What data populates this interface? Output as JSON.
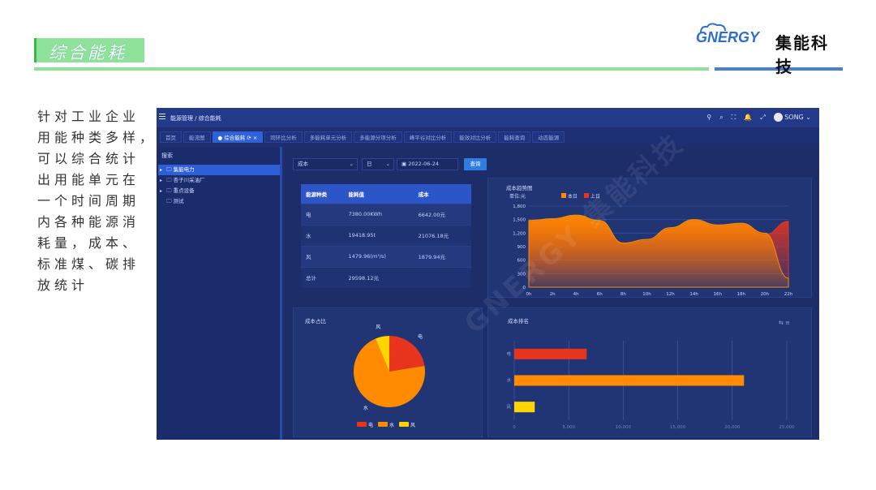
{
  "slide": {
    "title": "综合能耗",
    "logo_text": "GNERGY",
    "logo_cn": "集能科技",
    "description_lines": [
      "针对工业企业",
      "用能种类多样，",
      "可以综合统计",
      "出用能单元在",
      "一个时间周期",
      "内各种能源消",
      "耗量，成本、",
      "标准煤、碳排",
      "放统计"
    ],
    "accent_green": "#8ee29a",
    "accent_blue": "#4a7fd6"
  },
  "app": {
    "breadcrumb": "能源管理 / 综合能耗",
    "user_name": "SONG",
    "top_icons": [
      "github-icon",
      "search-icon",
      "fullscreen-icon",
      "bell-icon",
      "expand-icon"
    ],
    "tabs": [
      {
        "label": "首页",
        "active": false
      },
      {
        "label": "能流图",
        "active": false
      },
      {
        "label": "● 综合能耗 ⟳ ×",
        "active": true
      },
      {
        "label": "同环比分析",
        "active": false
      },
      {
        "label": "多能耗单元分析",
        "active": false
      },
      {
        "label": "多能源分项分析",
        "active": false
      },
      {
        "label": "峰平谷对比分析",
        "active": false
      },
      {
        "label": "能效对比分析",
        "active": false
      },
      {
        "label": "能耗查询",
        "active": false
      },
      {
        "label": "动态能源",
        "active": false
      }
    ],
    "sidebar": {
      "search_label": "搜索",
      "items": [
        {
          "label": "集能电力",
          "selected": true,
          "arrow": "▸"
        },
        {
          "label": "杏子川采油厂",
          "selected": false,
          "arrow": "▸"
        },
        {
          "label": "重点设备",
          "selected": false,
          "arrow": "▸"
        },
        {
          "label": "测试",
          "selected": false,
          "arrow": ""
        }
      ]
    },
    "filters": {
      "type_value": "成本",
      "period_value": "日",
      "date_value": "2022-06-24",
      "query_button": "查询"
    },
    "table": {
      "headers": [
        "能源种类",
        "能耗值",
        "成本"
      ],
      "rows": [
        [
          "电",
          "7380.00KWh",
          "6642.00元"
        ],
        [
          "水",
          "19418.95t",
          "21076.18元"
        ],
        [
          "风",
          "1479.96(m³/s)",
          "1879.94元"
        ],
        [
          "总计",
          "29598.12元",
          ""
        ]
      ]
    },
    "watermark": "GNERGY 集能科技"
  },
  "chart_data": [
    {
      "type": "area",
      "title": "成本趋势图",
      "ylabel": "单位:元",
      "legend": [
        "本日",
        "上日"
      ],
      "colors": [
        "#ff8c00",
        "#e8341c"
      ],
      "x": [
        "0h",
        "2h",
        "4h",
        "6h",
        "8h",
        "10h",
        "12h",
        "14h",
        "16h",
        "18h",
        "20h",
        "22h"
      ],
      "ylim": [
        0,
        1800
      ],
      "yticks": [
        0,
        300,
        600,
        900,
        1200,
        1500,
        1800
      ],
      "series": [
        {
          "name": "本日",
          "values": [
            1480,
            1520,
            1600,
            1480,
            980,
            1060,
            1320,
            1500,
            1380,
            1420,
            1200,
            200
          ]
        },
        {
          "name": "上日",
          "values": [
            1440,
            1480,
            1560,
            1420,
            960,
            1020,
            1280,
            1460,
            1340,
            1380,
            1160,
            1460
          ]
        }
      ],
      "legend_position": "top"
    },
    {
      "type": "pie",
      "title": "成本占比",
      "categories": [
        "电",
        "水",
        "风"
      ],
      "values": [
        6642.0,
        21076.18,
        1879.94
      ],
      "colors": [
        "#e8341c",
        "#ff8c00",
        "#ffd400"
      ],
      "legend_position": "bottom"
    },
    {
      "type": "bar",
      "title": "成本排名",
      "categories": [
        "电",
        "水",
        "风"
      ],
      "values": [
        6642.0,
        21076.18,
        1879.94
      ],
      "colors": [
        "#e8341c",
        "#ff8c00",
        "#ffd400"
      ],
      "xlim": [
        0,
        25000
      ],
      "xticks": [
        "0",
        "5,000",
        "10,000",
        "15,000",
        "20,000",
        "25,000"
      ],
      "orientation": "horizontal"
    }
  ]
}
